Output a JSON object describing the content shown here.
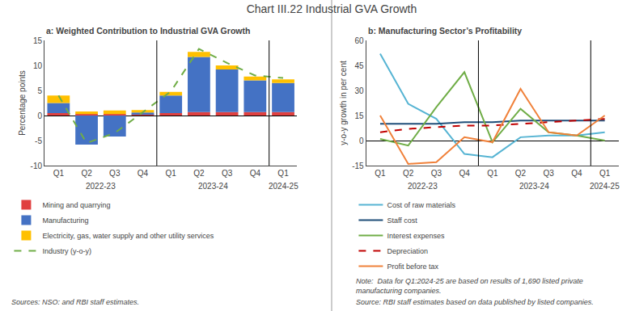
{
  "title": "Chart III.22 Industrial GVA Growth",
  "chart_data": [
    {
      "type": "bar",
      "title": "a: Weighted Contribution to Industrial GVA Growth",
      "stacked": true,
      "categories": [
        "Q1",
        "Q2",
        "Q3",
        "Q4",
        "Q1",
        "Q2",
        "Q3",
        "Q4",
        "Q1"
      ],
      "ylabel": "Percentage points",
      "ylim": [
        -10,
        15
      ],
      "yticks": [
        -10,
        -5,
        0,
        5,
        10,
        15
      ],
      "grid": false,
      "legend": "bottom",
      "series": [
        {
          "name": "Mining and quarrying",
          "color": "#e04040",
          "values": [
            0.5,
            0.3,
            0.3,
            0.3,
            0.5,
            0.7,
            0.7,
            0.7,
            0.7
          ]
        },
        {
          "name": "Manufacturing",
          "color": "#4472c4",
          "values": [
            2.0,
            -5.8,
            -4.2,
            0.3,
            3.5,
            11.0,
            8.5,
            6.3,
            5.8
          ]
        },
        {
          "name": "Electricity, gas, water supply and other utility services",
          "color": "#ffc000",
          "values": [
            1.5,
            0.5,
            0.7,
            0.5,
            0.7,
            1.0,
            0.8,
            0.8,
            0.7
          ]
        },
        {
          "name": "Industry (y-o-y)",
          "type": "line",
          "line_style": "dashed",
          "color": "#70ad47",
          "values": [
            4.0,
            -5.5,
            -3.5,
            0.7,
            4.8,
            13.3,
            10.5,
            8.0,
            7.5
          ]
        }
      ],
      "annotations": [
        {
          "text": "2022-23",
          "x": 1.5
        },
        {
          "text": "2023-24",
          "x": 5.5
        },
        {
          "text": "2024-25",
          "x": 8
        },
        {
          "text": "Sources: NSO: and RBI staff estimates."
        }
      ]
    },
    {
      "type": "line",
      "title": "b: Manufacturing Sector’s Profitability",
      "categories": [
        "Q1",
        "Q2",
        "Q3",
        "Q4",
        "Q1",
        "Q2",
        "Q3",
        "Q4",
        "Q1"
      ],
      "ylabel": "y-o-y growth in per cent",
      "ylim": [
        -15,
        60
      ],
      "yticks": [
        -15,
        0,
        15,
        30,
        45,
        60
      ],
      "grid": false,
      "legend": "bottom",
      "series": [
        {
          "name": "Cost of raw materials",
          "color": "#56b4d3",
          "line_style": "solid",
          "values": [
            52,
            22,
            13,
            -8,
            -10,
            2,
            3,
            3,
            5
          ]
        },
        {
          "name": "Staff cost",
          "color": "#1f4e79",
          "line_style": "solid",
          "values": [
            10,
            10,
            10,
            11,
            11,
            12,
            12,
            12,
            12
          ]
        },
        {
          "name": "Interest expenses",
          "color": "#70ad47",
          "line_style": "solid",
          "values": [
            1,
            -3,
            20,
            41,
            -1,
            19,
            5,
            3,
            0
          ]
        },
        {
          "name": "Depreciation",
          "color": "#c00000",
          "line_style": "dashed",
          "values": [
            5,
            7,
            8,
            9,
            9,
            10,
            11,
            12,
            13
          ]
        },
        {
          "name": "Profit before tax",
          "color": "#f0813a",
          "line_style": "solid",
          "values": [
            15,
            -14,
            -13,
            2,
            -1,
            31,
            5,
            3,
            15
          ]
        }
      ],
      "annotations": [
        {
          "text": "2022-23",
          "x": 1.5
        },
        {
          "text": "2023-24",
          "x": 5.5
        },
        {
          "text": "2024-25",
          "x": 8
        },
        {
          "text": "Note:  Data for Q1:2024-25 are based on results of 1,690 listed private\nmanufacturing companies."
        },
        {
          "text": "Source: RBI staff estimates based on data published by listed companies."
        }
      ]
    }
  ]
}
